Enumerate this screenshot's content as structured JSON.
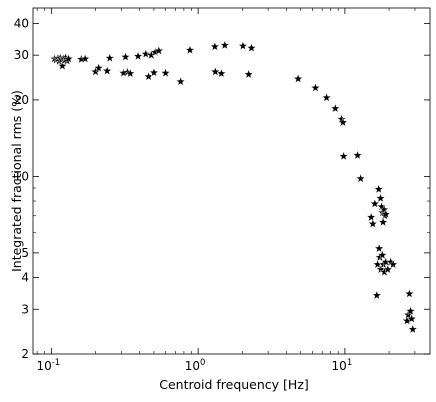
{
  "chart_data": {
    "type": "scatter",
    "title": "",
    "xlabel": "Centroid frequency [Hz]",
    "ylabel": "Integrated fractional rms (%)",
    "xscale": "log",
    "yscale": "log",
    "xlim": [
      0.075,
      38
    ],
    "ylim": [
      2,
      46
    ],
    "grid": false,
    "legend": "none",
    "marker": "star",
    "marker_color": "#000000",
    "x_ticks": [
      {
        "value": 0.1,
        "label": "10",
        "sup": "-1"
      },
      {
        "value": 1,
        "label": "10",
        "sup": "0"
      },
      {
        "value": 10,
        "label": "10",
        "sup": "1"
      }
    ],
    "y_ticks": [
      {
        "value": 2,
        "label": "2"
      },
      {
        "value": 3,
        "label": "3"
      },
      {
        "value": 4,
        "label": "4"
      },
      {
        "value": 5,
        "label": "5"
      },
      {
        "value": 10,
        "label": "10"
      },
      {
        "value": 20,
        "label": "20"
      },
      {
        "value": 30,
        "label": "30"
      },
      {
        "value": 40,
        "label": "40"
      }
    ],
    "points": [
      {
        "x": 0.105,
        "y": 29.0
      },
      {
        "x": 0.108,
        "y": 28.7
      },
      {
        "x": 0.111,
        "y": 29.1
      },
      {
        "x": 0.113,
        "y": 28.4
      },
      {
        "x": 0.115,
        "y": 29.2
      },
      {
        "x": 0.117,
        "y": 28.8
      },
      {
        "x": 0.119,
        "y": 27.2
      },
      {
        "x": 0.121,
        "y": 29.0
      },
      {
        "x": 0.123,
        "y": 28.6
      },
      {
        "x": 0.125,
        "y": 29.3
      },
      {
        "x": 0.128,
        "y": 28.5
      },
      {
        "x": 0.131,
        "y": 29.0
      },
      {
        "x": 0.16,
        "y": 28.9
      },
      {
        "x": 0.17,
        "y": 29.0
      },
      {
        "x": 0.2,
        "y": 25.8
      },
      {
        "x": 0.21,
        "y": 26.7
      },
      {
        "x": 0.24,
        "y": 26.0
      },
      {
        "x": 0.25,
        "y": 29.2
      },
      {
        "x": 0.31,
        "y": 25.5
      },
      {
        "x": 0.32,
        "y": 29.5
      },
      {
        "x": 0.33,
        "y": 25.7
      },
      {
        "x": 0.345,
        "y": 25.4
      },
      {
        "x": 0.39,
        "y": 29.7
      },
      {
        "x": 0.44,
        "y": 30.3
      },
      {
        "x": 0.46,
        "y": 24.7
      },
      {
        "x": 0.48,
        "y": 30.0
      },
      {
        "x": 0.5,
        "y": 25.6
      },
      {
        "x": 0.51,
        "y": 30.8
      },
      {
        "x": 0.54,
        "y": 31.2
      },
      {
        "x": 0.6,
        "y": 25.5
      },
      {
        "x": 0.76,
        "y": 23.6
      },
      {
        "x": 0.88,
        "y": 31.4
      },
      {
        "x": 1.3,
        "y": 32.4
      },
      {
        "x": 1.31,
        "y": 25.8
      },
      {
        "x": 1.44,
        "y": 25.4
      },
      {
        "x": 1.52,
        "y": 32.8
      },
      {
        "x": 2.02,
        "y": 32.6
      },
      {
        "x": 2.21,
        "y": 25.2
      },
      {
        "x": 2.31,
        "y": 32.0
      },
      {
        "x": 4.8,
        "y": 24.2
      },
      {
        "x": 6.3,
        "y": 22.3
      },
      {
        "x": 7.5,
        "y": 20.4
      },
      {
        "x": 8.6,
        "y": 18.5
      },
      {
        "x": 9.5,
        "y": 16.8
      },
      {
        "x": 9.7,
        "y": 16.3
      },
      {
        "x": 9.8,
        "y": 12.0
      },
      {
        "x": 12.2,
        "y": 12.1
      },
      {
        "x": 12.8,
        "y": 9.8
      },
      {
        "x": 15.1,
        "y": 6.9
      },
      {
        "x": 15.5,
        "y": 6.5
      },
      {
        "x": 16.0,
        "y": 7.8
      },
      {
        "x": 16.5,
        "y": 3.4
      },
      {
        "x": 17.0,
        "y": 8.9
      },
      {
        "x": 17.5,
        "y": 8.2
      },
      {
        "x": 17.8,
        "y": 7.6
      },
      {
        "x": 18.0,
        "y": 7.2
      },
      {
        "x": 18.2,
        "y": 6.6
      },
      {
        "x": 18.5,
        "y": 7.4
      },
      {
        "x": 18.7,
        "y": 7.0
      },
      {
        "x": 19.0,
        "y": 7.1
      },
      {
        "x": 16.7,
        "y": 4.5
      },
      {
        "x": 17.1,
        "y": 5.2
      },
      {
        "x": 17.3,
        "y": 4.8
      },
      {
        "x": 17.6,
        "y": 4.3
      },
      {
        "x": 18.0,
        "y": 4.9
      },
      {
        "x": 18.3,
        "y": 4.5
      },
      {
        "x": 18.6,
        "y": 4.2
      },
      {
        "x": 19.0,
        "y": 4.6
      },
      {
        "x": 19.6,
        "y": 4.3
      },
      {
        "x": 20.5,
        "y": 4.6
      },
      {
        "x": 21.3,
        "y": 4.5
      },
      {
        "x": 26.5,
        "y": 2.7
      },
      {
        "x": 27.0,
        "y": 2.85
      },
      {
        "x": 27.5,
        "y": 3.45
      },
      {
        "x": 28.0,
        "y": 2.95
      },
      {
        "x": 28.5,
        "y": 2.75
      },
      {
        "x": 29.0,
        "y": 2.5
      }
    ]
  }
}
